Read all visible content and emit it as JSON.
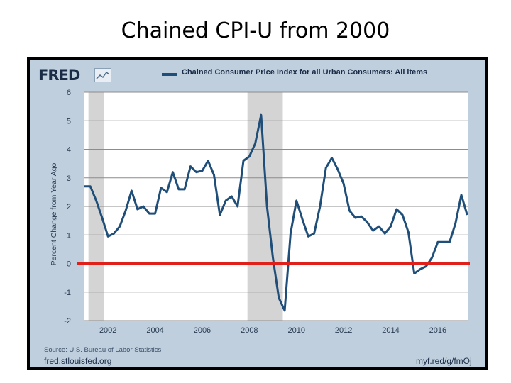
{
  "slide": {
    "title": "Chained CPI-U from 2000"
  },
  "fred": {
    "logo": "FRED",
    "legend": "Chained Consumer Price Index for all Urban Consumers: All items",
    "source": "Source: U.S. Bureau of Labor Statistics",
    "footer_left": "fred.stlouisfed.org",
    "footer_right": "myf.red/g/fmOj"
  },
  "chart_data": {
    "type": "line",
    "title": "Chained CPI-U from 2000",
    "ylabel": "Percent Change from Year Ago",
    "xlabel": "",
    "xlim": [
      2001.0,
      2017.3
    ],
    "ylim": [
      -2,
      6
    ],
    "y_ticks": [
      -2,
      -1,
      0,
      1,
      2,
      3,
      4,
      5,
      6
    ],
    "x_ticks": [
      2002,
      2004,
      2006,
      2008,
      2010,
      2012,
      2014,
      2016
    ],
    "grid": true,
    "legend_position": "top",
    "recessions": [
      [
        2001.17,
        2001.83
      ],
      [
        2007.92,
        2009.42
      ]
    ],
    "reference_line": {
      "y": 0,
      "color": "#e0201b"
    },
    "series": [
      {
        "name": "Chained Consumer Price Index for all Urban Consumers: All items",
        "color": "#1f4e79",
        "x": [
          2001.0,
          2001.25,
          2001.5,
          2001.75,
          2002.0,
          2002.25,
          2002.5,
          2002.75,
          2003.0,
          2003.25,
          2003.5,
          2003.75,
          2004.0,
          2004.25,
          2004.5,
          2004.75,
          2005.0,
          2005.25,
          2005.5,
          2005.75,
          2006.0,
          2006.25,
          2006.5,
          2006.75,
          2007.0,
          2007.25,
          2007.5,
          2007.75,
          2008.0,
          2008.25,
          2008.5,
          2008.75,
          2009.0,
          2009.25,
          2009.5,
          2009.75,
          2010.0,
          2010.25,
          2010.5,
          2010.75,
          2011.0,
          2011.25,
          2011.5,
          2011.75,
          2012.0,
          2012.25,
          2012.5,
          2012.75,
          2013.0,
          2013.25,
          2013.5,
          2013.75,
          2014.0,
          2014.25,
          2014.5,
          2014.75,
          2015.0,
          2015.25,
          2015.5,
          2015.75,
          2016.0,
          2016.25,
          2016.5,
          2016.75,
          2017.0,
          2017.25
        ],
        "values": [
          2.7,
          2.7,
          2.2,
          1.6,
          0.95,
          1.05,
          1.3,
          1.85,
          2.55,
          1.9,
          2.0,
          1.75,
          1.75,
          2.65,
          2.5,
          3.2,
          2.6,
          2.6,
          3.4,
          3.2,
          3.25,
          3.6,
          3.1,
          1.7,
          2.2,
          2.35,
          2.0,
          3.6,
          3.75,
          4.2,
          5.2,
          2.0,
          0.2,
          -1.2,
          -1.65,
          1.05,
          2.2,
          1.55,
          0.95,
          1.05,
          2.0,
          3.35,
          3.7,
          3.3,
          2.8,
          1.85,
          1.6,
          1.65,
          1.45,
          1.15,
          1.3,
          1.05,
          1.3,
          1.9,
          1.7,
          1.1,
          -0.35,
          -0.2,
          -0.1,
          0.2,
          0.75,
          0.75,
          0.75,
          1.4,
          2.4,
          1.7
        ]
      }
    ]
  }
}
